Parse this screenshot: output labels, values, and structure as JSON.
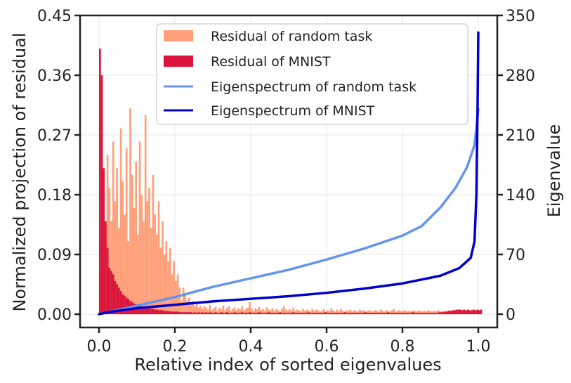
{
  "chart_data": {
    "type": "bar+line",
    "xlabel": "Relative index of sorted eigenvalues",
    "ylabel_left": "Normalized projection of residual",
    "ylabel_right": "Eigenvalue",
    "xlim": [
      -0.05,
      1.05
    ],
    "ylim_left": [
      -0.02,
      0.45
    ],
    "ylim_right": [
      -15.6,
      350
    ],
    "x_ticks": [
      0.0,
      0.2,
      0.4,
      0.6,
      0.8,
      1.0
    ],
    "x_tick_labels": [
      "0.0",
      "0.2",
      "0.4",
      "0.6",
      "0.8",
      "1.0"
    ],
    "y_left_ticks": [
      0.0,
      0.09,
      0.18,
      0.27,
      0.36,
      0.45
    ],
    "y_left_tick_labels": [
      "0.00",
      "0.09",
      "0.18",
      "0.27",
      "0.36",
      "0.45"
    ],
    "y_right_ticks": [
      0,
      70,
      140,
      210,
      280,
      350
    ],
    "y_right_tick_labels": [
      "0",
      "70",
      "140",
      "210",
      "280",
      "350"
    ],
    "grid": true,
    "legend_position": "top-right",
    "colors": {
      "residual_random": "#FFA07A",
      "residual_mnist": "#DC143C",
      "eig_random": "#6495ED",
      "eig_mnist": "#0000CD",
      "axes": "#222222",
      "grid": "#e6e6e6"
    },
    "series": [
      {
        "name": "Residual of random task",
        "kind": "histogram",
        "axis": "left",
        "bin_width": 0.005,
        "x_start": 0.0,
        "values": [
          0.04,
          0.06,
          0.1,
          0.12,
          0.24,
          0.19,
          0.14,
          0.26,
          0.17,
          0.22,
          0.13,
          0.28,
          0.2,
          0.15,
          0.25,
          0.11,
          0.31,
          0.21,
          0.16,
          0.23,
          0.12,
          0.26,
          0.18,
          0.14,
          0.3,
          0.17,
          0.19,
          0.13,
          0.21,
          0.15,
          0.12,
          0.17,
          0.1,
          0.14,
          0.09,
          0.11,
          0.08,
          0.1,
          0.06,
          0.08,
          0.05,
          0.06,
          0.04,
          0.02,
          0.04,
          0.03,
          0.02,
          0.025,
          0.015,
          0.02,
          0.012,
          0.016,
          0.01,
          0.013,
          0.008,
          0.012,
          0.01,
          0.007,
          0.014,
          0.006,
          0.009,
          0.011,
          0.005,
          0.01,
          0.007,
          0.013,
          0.006,
          0.009,
          0.012,
          0.005,
          0.008,
          0.01,
          0.006,
          0.009,
          0.007,
          0.012,
          0.006,
          0.008,
          0.01,
          0.018,
          0.008,
          0.005,
          0.009,
          0.007,
          0.011,
          0.006,
          0.008,
          0.005,
          0.01,
          0.007,
          0.006,
          0.009,
          0.005,
          0.008,
          0.006,
          0.004,
          0.009,
          0.012,
          0.007,
          0.005,
          0.008,
          0.006,
          0.01,
          0.005,
          0.007,
          0.006,
          0.004,
          0.008,
          0.005,
          0.007,
          0.006,
          0.004,
          0.008,
          0.005,
          0.007,
          0.006,
          0.004,
          0.005,
          0.008,
          0.004,
          0.006,
          0.005,
          0.009,
          0.006,
          0.004,
          0.007,
          0.005,
          0.008,
          0.005,
          0.004,
          0.006,
          0.005,
          0.007,
          0.004,
          0.006,
          0.005,
          0.004,
          0.007,
          0.005,
          0.006,
          0.004,
          0.005,
          0.006,
          0.005,
          0.004,
          0.006,
          0.005,
          0.004,
          0.007,
          0.005,
          0.004,
          0.006,
          0.005,
          0.004,
          0.006,
          0.008,
          0.004,
          0.005,
          0.006,
          0.004,
          0.005,
          0.006,
          0.004,
          0.005,
          0.004,
          0.006,
          0.005,
          0.004,
          0.006,
          0.005,
          0.004,
          0.005,
          0.004,
          0.006,
          0.005,
          0.004,
          0.005,
          0.004,
          0.006,
          0.005,
          0.004,
          0.005,
          0.004,
          0.005,
          0.006,
          0.004,
          0.005,
          0.004,
          0.005,
          0.004,
          0.005,
          0.006,
          0.004,
          0.005,
          0.004,
          0.005
        ]
      },
      {
        "name": "Residual of MNIST",
        "kind": "histogram",
        "axis": "left",
        "bin_width": 0.005,
        "x_start": 0.0,
        "values": [
          0.4,
          0.36,
          0.22,
          0.14,
          0.1,
          0.07,
          0.065,
          0.06,
          0.05,
          0.045,
          0.04,
          0.035,
          0.03,
          0.028,
          0.025,
          0.023,
          0.02,
          0.018,
          0.016,
          0.015,
          0.014,
          0.013,
          0.012,
          0.011,
          0.01,
          0.009,
          0.009,
          0.008,
          0.008,
          0.007,
          0.007,
          0.006,
          0.006,
          0.006,
          0.005,
          0.005,
          0.005,
          0.004,
          0.004,
          0.004,
          0.004,
          0.004,
          0.003,
          0.003,
          0.003,
          0.003,
          0.003,
          0.003,
          0.003,
          0.002,
          0.003,
          0.002,
          0.003,
          0.002,
          0.003,
          0.002,
          0.003,
          0.002,
          0.003,
          0.002,
          0.002,
          0.003,
          0.002,
          0.002,
          0.003,
          0.002,
          0.002,
          0.003,
          0.002,
          0.002,
          0.002,
          0.003,
          0.002,
          0.002,
          0.002,
          0.003,
          0.002,
          0.002,
          0.002,
          0.003,
          0.002,
          0.002,
          0.002,
          0.002,
          0.003,
          0.002,
          0.002,
          0.002,
          0.002,
          0.003,
          0.002,
          0.002,
          0.002,
          0.002,
          0.002,
          0.003,
          0.002,
          0.002,
          0.002,
          0.002,
          0.002,
          0.002,
          0.003,
          0.002,
          0.002,
          0.002,
          0.002,
          0.002,
          0.002,
          0.002,
          0.003,
          0.002,
          0.002,
          0.002,
          0.002,
          0.002,
          0.002,
          0.002,
          0.002,
          0.003,
          0.002,
          0.002,
          0.002,
          0.002,
          0.002,
          0.002,
          0.002,
          0.002,
          0.002,
          0.003,
          0.002,
          0.002,
          0.002,
          0.002,
          0.002,
          0.002,
          0.002,
          0.002,
          0.002,
          0.002,
          0.003,
          0.002,
          0.002,
          0.002,
          0.002,
          0.002,
          0.002,
          0.002,
          0.002,
          0.002,
          0.002,
          0.002,
          0.003,
          0.002,
          0.002,
          0.002,
          0.002,
          0.002,
          0.002,
          0.002,
          0.002,
          0.002,
          0.002,
          0.002,
          0.002,
          0.003,
          0.002,
          0.002,
          0.002,
          0.002,
          0.002,
          0.002,
          0.002,
          0.002,
          0.002,
          0.002,
          0.002,
          0.002,
          0.002,
          0.003,
          0.003,
          0.003,
          0.004,
          0.004,
          0.005,
          0.005,
          0.006,
          0.006,
          0.007,
          0.007,
          0.007,
          0.006,
          0.007,
          0.006,
          0.007,
          0.006,
          0.006,
          0.007,
          0.006,
          0.007,
          0.006,
          0.007
        ]
      },
      {
        "name": "Eigenspectrum of random task",
        "kind": "line",
        "axis": "right",
        "x": [
          0.0,
          0.01,
          0.05,
          0.1,
          0.15,
          0.2,
          0.25,
          0.3,
          0.4,
          0.5,
          0.6,
          0.7,
          0.8,
          0.85,
          0.9,
          0.94,
          0.97,
          0.99,
          1.0
        ],
        "y": [
          0,
          1,
          5,
          10,
          15,
          20,
          26,
          32,
          42,
          52,
          64,
          77,
          92,
          103,
          125,
          148,
          172,
          198,
          240
        ]
      },
      {
        "name": "Eigenspectrum of MNIST",
        "kind": "line",
        "axis": "right",
        "x": [
          0.0,
          0.02,
          0.05,
          0.1,
          0.2,
          0.3,
          0.4,
          0.5,
          0.6,
          0.7,
          0.8,
          0.9,
          0.95,
          0.98,
          0.99,
          0.995,
          0.998,
          1.0
        ],
        "y": [
          0,
          2,
          4,
          7,
          11,
          15,
          18,
          21,
          25,
          30,
          36,
          45,
          54,
          66,
          85,
          140,
          240,
          330
        ]
      }
    ]
  }
}
